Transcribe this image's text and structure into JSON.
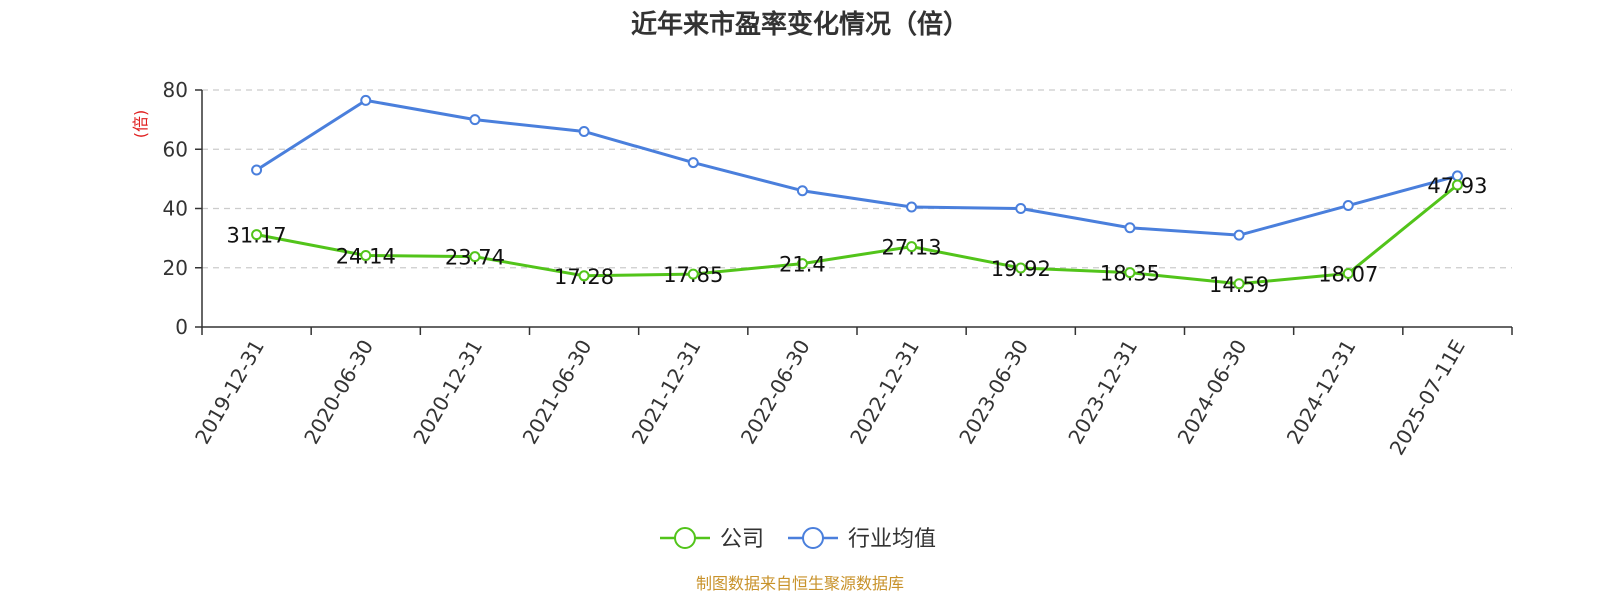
{
  "chart_data": {
    "type": "line",
    "title": "近年来市盈率变化情况（倍）",
    "ylabel": "(倍)",
    "xlabel": "",
    "ylim": [
      0,
      80
    ],
    "yticks": [
      0,
      20,
      40,
      60,
      80
    ],
    "grid": true,
    "legend_position": "bottom-center",
    "categories": [
      "2019-12-31",
      "2020-06-30",
      "2020-12-31",
      "2021-06-30",
      "2021-12-31",
      "2022-06-30",
      "2022-12-31",
      "2023-06-30",
      "2023-12-31",
      "2024-06-30",
      "2024-12-31",
      "2025-07-11E"
    ],
    "series": [
      {
        "name": "公司",
        "color": "#52c41a",
        "show_labels": true,
        "values": [
          31.17,
          24.14,
          23.74,
          17.28,
          17.85,
          21.4,
          27.13,
          19.92,
          18.35,
          14.59,
          18.07,
          47.93
        ]
      },
      {
        "name": "行业均值",
        "color": "#4a7fdc",
        "show_labels": false,
        "values": [
          53,
          76.5,
          70,
          66,
          55.5,
          46,
          40.5,
          40,
          33.5,
          31,
          41,
          51
        ]
      }
    ]
  },
  "source_note": "制图数据来自恒生聚源数据库",
  "colors": {
    "ylabel": "#e02020",
    "source": "#c8922a",
    "grid": "#cccccc",
    "axis": "#333333"
  }
}
